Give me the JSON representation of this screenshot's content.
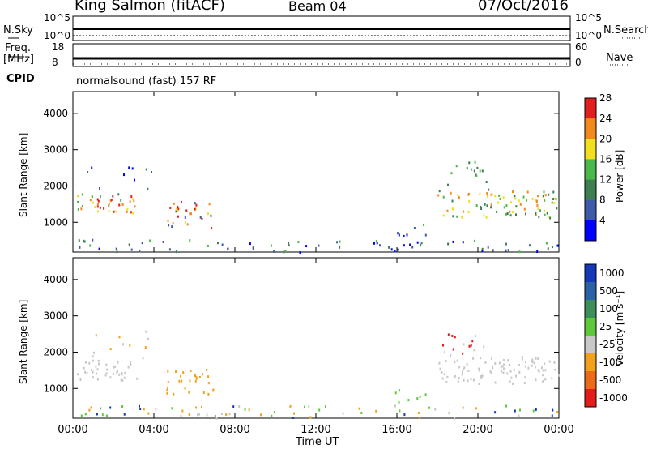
{
  "header": {
    "station": "King Salmon (fitACF)",
    "beam": "Beam 04",
    "date": "07/Oct/2016"
  },
  "strips": {
    "nsky_label": "N.Sky",
    "nsearch_label": "N.Search",
    "nsky_ticks": [
      "10^5",
      "10^0"
    ],
    "nsearch_ticks": [
      "10^5",
      "10^0"
    ],
    "freq_label": "Freq.",
    "freq_unit": "[MHz]",
    "freq_ticks": [
      "18",
      "8"
    ],
    "nave_label": "Nave",
    "nave_ticks": [
      "60",
      "0"
    ],
    "cpid_label": "CPID",
    "cpid_text": "normalsound (fast) 157 RF"
  },
  "chart_data": [
    {
      "type": "heatmap",
      "title": "",
      "ylabel": "Slant Range [km]",
      "xlabel": "",
      "ylim": [
        180,
        4600
      ],
      "xlim": [
        0,
        24
      ],
      "y_ticks": [
        "1000",
        "2000",
        "3000",
        "4000"
      ],
      "colorbar": {
        "label": "Power [dB]",
        "ticks": [
          "4",
          "8",
          "12",
          "16",
          "20",
          "24",
          "28"
        ],
        "colors": [
          "#0000ff",
          "#3f5aa8",
          "#3e7f52",
          "#4ab84a",
          "#f2e01e",
          "#f08a1a",
          "#e21e1e"
        ]
      }
    },
    {
      "type": "heatmap",
      "title": "",
      "ylabel": "Slant Range [km]",
      "xlabel": "Time UT",
      "ylim": [
        180,
        4600
      ],
      "xlim": [
        0,
        24
      ],
      "y_ticks": [
        "1000",
        "2000",
        "3000",
        "4000"
      ],
      "x_ticks": [
        "00:00",
        "04:00",
        "08:00",
        "12:00",
        "16:00",
        "20:00",
        "00:00"
      ],
      "colorbar": {
        "label": "Velocity [m s⁻¹]",
        "ticks": [
          "1000",
          "500",
          "100",
          "25",
          "-25",
          "-100",
          "-500",
          "-1000"
        ],
        "colors": [
          "#1438b8",
          "#2a62a8",
          "#3c8f58",
          "#5cc83a",
          "#c8c8c8",
          "#f3a11a",
          "#ec6a18",
          "#e41c1c"
        ]
      }
    }
  ]
}
